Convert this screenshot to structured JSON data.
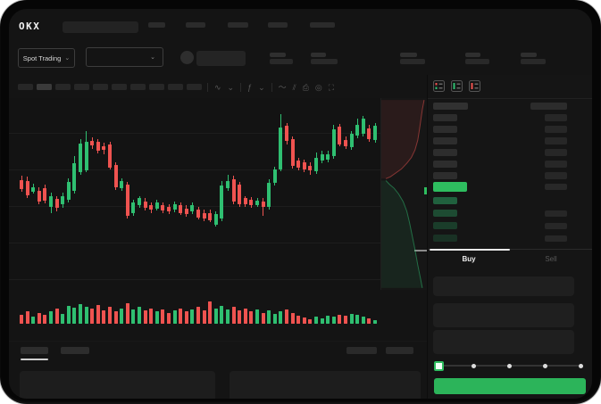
{
  "colors": {
    "up": "#2fbf71",
    "down": "#ef5350",
    "accent_green": "#2ebd5f",
    "buy_button": "#2cb45a",
    "background": "#141414"
  },
  "topnav": {
    "logo": "OKX",
    "search_placeholder": "",
    "items": [
      {
        "w": 19,
        "ml": 0
      },
      {
        "w": 22,
        "ml": 23
      },
      {
        "w": 23,
        "ml": 25
      },
      {
        "w": 22,
        "ml": 22
      },
      {
        "w": 28,
        "ml": 25
      }
    ]
  },
  "symbol_bar": {
    "market_selector": {
      "label": "Spot Trading",
      "chevron": "⌄"
    },
    "pair_selector": {
      "chevron": "⌄"
    },
    "stats": [
      {
        "label_w": 18,
        "value_w": 26,
        "ml": 0
      },
      {
        "label_w": 17,
        "value_w": 30,
        "ml": 20
      },
      {
        "label_w": 19,
        "value_w": 28,
        "ml": 70
      },
      {
        "label_w": 17,
        "value_w": 27,
        "ml": 45
      },
      {
        "label_w": 18,
        "value_w": 28,
        "ml": 35
      }
    ]
  },
  "chart_toolbar": {
    "timeframes": {
      "count": 10,
      "w": 17,
      "active_index": 1
    },
    "icons": [
      {
        "name": "separator"
      },
      {
        "name": "chart-style-icon",
        "glyph": "∿"
      },
      {
        "name": "chart-style-chevron-icon",
        "glyph": "⌄"
      },
      {
        "name": "separator"
      },
      {
        "name": "indicators-icon",
        "glyph": "ƒ"
      },
      {
        "name": "indicators-chevron-icon",
        "glyph": "⌄"
      },
      {
        "name": "separator"
      },
      {
        "name": "line-tool-icon",
        "glyph": "〜"
      },
      {
        "name": "compare-icon",
        "glyph": "⫽"
      },
      {
        "name": "screenshot-icon",
        "glyph": "⎙"
      },
      {
        "name": "chart-settings-icon",
        "glyph": "◎"
      },
      {
        "name": "fullscreen-icon",
        "glyph": "⛶"
      }
    ]
  },
  "chart_data": [
    {
      "type": "candlestick",
      "title": "",
      "xlabel": "time (axis unlabeled in UI)",
      "ylabel": "price (axis unlabeled in UI, relative scale 0-100)",
      "grid": true,
      "gridlines_pct": [
        18.1,
        37.2,
        56.3,
        75.3,
        94.4
      ],
      "up_color": "#2fbf71",
      "down_color": "#ef5350",
      "candles_ochl": [
        [
          57.5,
          52.8,
          60,
          51
        ],
        [
          57,
          49.5,
          59.5,
          48
        ],
        [
          51.4,
          53.8,
          55.7,
          50
        ],
        [
          51.9,
          45.7,
          53.8,
          44.3
        ],
        [
          53.3,
          46.2,
          55.2,
          44.8
        ],
        [
          42.9,
          48.6,
          50.5,
          39.5
        ],
        [
          47.1,
          42.4,
          49,
          40.5
        ],
        [
          44.3,
          49,
          50.9,
          42.4
        ],
        [
          46.7,
          56.7,
          58.6,
          45.2
        ],
        [
          51.6,
          66.7,
          70.6,
          50
        ],
        [
          61.9,
          77.8,
          80.1,
          60.5
        ],
        [
          62.7,
          78.6,
          84.6,
          61.9
        ],
        [
          78.9,
          76.7,
          80.9,
          74.8
        ],
        [
          78.6,
          73.8,
          80,
          72.4
        ],
        [
          76.2,
          74.1,
          78.1,
          71.9
        ],
        [
          77,
          64.6,
          78.6,
          63.3
        ],
        [
          65.9,
          53.5,
          67.1,
          52.4
        ],
        [
          53.2,
          57.1,
          58.6,
          51.9
        ],
        [
          55.1,
          38.1,
          56.7,
          36.7
        ],
        [
          39.7,
          45.2,
          46.7,
          38.1
        ],
        [
          43.7,
          47.6,
          49,
          42.4
        ],
        [
          46,
          42.4,
          47.6,
          40.9
        ],
        [
          43.7,
          41.3,
          45.2,
          39.7
        ],
        [
          42.1,
          45.2,
          46.7,
          40.9
        ],
        [
          44,
          40.8,
          45.6,
          39.4
        ],
        [
          42.9,
          40.5,
          44.3,
          39
        ],
        [
          41.3,
          44.4,
          45.9,
          40
        ],
        [
          43.7,
          39.7,
          45.2,
          38.4
        ],
        [
          42.1,
          38.9,
          43.7,
          37.5
        ],
        [
          40.5,
          43.7,
          45.2,
          39.2
        ],
        [
          41.3,
          37.3,
          42.9,
          36
        ],
        [
          39.7,
          36.5,
          41.3,
          35.2
        ],
        [
          39.7,
          35.7,
          41.3,
          34.4
        ],
        [
          33.3,
          38.9,
          40.5,
          32.1
        ],
        [
          36.5,
          54.8,
          57.1,
          35.2
        ],
        [
          53.2,
          57.1,
          60.5,
          51.9
        ],
        [
          58.2,
          46,
          59.8,
          44.6
        ],
        [
          55,
          44.4,
          56.7,
          42.9
        ],
        [
          47.6,
          44.4,
          49,
          42.9
        ],
        [
          46.8,
          44,
          48.3,
          42.5
        ],
        [
          44,
          46.5,
          48,
          42.7
        ],
        [
          46,
          42.9,
          47.6,
          38.1
        ],
        [
          42.9,
          56.3,
          57.9,
          41.3
        ],
        [
          56,
          63.5,
          65.1,
          54.6
        ],
        [
          63.5,
          86.5,
          93.8,
          62.2
        ],
        [
          87.3,
          78.9,
          89,
          77.3
        ],
        [
          80.2,
          65.6,
          81.7,
          64
        ],
        [
          68.3,
          64.6,
          70,
          63
        ],
        [
          67.1,
          63.5,
          68.7,
          61.9
        ],
        [
          65.6,
          62.7,
          67.1,
          60.3
        ],
        [
          62.2,
          69.8,
          72.9,
          60.8
        ],
        [
          68.3,
          71.9,
          73.5,
          66.8
        ],
        [
          68.7,
          71.9,
          73.5,
          67.1
        ],
        [
          70.9,
          85.2,
          88,
          69.4
        ],
        [
          86.8,
          77.3,
          88.4,
          75.9
        ],
        [
          79.7,
          76.2,
          81.3,
          74.7
        ],
        [
          75.4,
          83,
          84.6,
          73.9
        ],
        [
          82,
          87.8,
          91,
          80.5
        ],
        [
          83,
          91,
          92.9,
          81.6
        ],
        [
          86,
          80.2,
          87.6,
          78.7
        ],
        [
          79.7,
          87.3,
          88.9,
          78.2
        ]
      ],
      "volume": [
        40,
        55,
        30,
        45,
        38,
        52,
        64,
        42,
        78,
        70,
        85,
        75,
        66,
        80,
        58,
        72,
        52,
        66,
        88,
        62,
        72,
        58,
        66,
        52,
        62,
        48,
        58,
        66,
        52,
        62,
        72,
        58,
        95,
        66,
        76,
        62,
        72,
        58,
        66,
        52,
        62,
        48,
        56,
        44,
        52,
        62,
        48,
        34,
        26,
        20,
        30,
        24,
        36,
        30,
        40,
        34,
        44,
        38,
        30,
        22,
        16
      ]
    },
    {
      "type": "area",
      "subtype": "vertical-depth-chart",
      "asks_color": "#ef5350",
      "bids_color": "#2fbf71",
      "asks_curve": [
        [
          94,
          1
        ],
        [
          90,
          6
        ],
        [
          87,
          11
        ],
        [
          84,
          16
        ],
        [
          80,
          22
        ],
        [
          74,
          27
        ],
        [
          66,
          31
        ],
        [
          56,
          34
        ],
        [
          44,
          37
        ],
        [
          32,
          39
        ],
        [
          20,
          41
        ],
        [
          10,
          42
        ]
      ],
      "bids_curve": [
        [
          10,
          43
        ],
        [
          18,
          45
        ],
        [
          28,
          47
        ],
        [
          38,
          50
        ],
        [
          48,
          54
        ],
        [
          56,
          59
        ],
        [
          62,
          65
        ],
        [
          68,
          72
        ],
        [
          74,
          79
        ],
        [
          80,
          87
        ],
        [
          86,
          94
        ],
        [
          90,
          99
        ]
      ]
    }
  ],
  "orderbook": {
    "view_icons": [
      "orderbook-default-icon",
      "orderbook-buy-icon",
      "orderbook-sell-icon"
    ],
    "asks_rows": 6,
    "bids": [
      {
        "amount": false,
        "opacity": 0.45
      },
      {
        "amount": true,
        "opacity": 0.32
      },
      {
        "amount": true,
        "opacity": 0.24
      },
      {
        "amount": true,
        "opacity": 0.17
      }
    ],
    "last_price_highlight_color": "#2ebd5f"
  },
  "trade_panel": {
    "tabs": [
      {
        "label": "Buy",
        "active": true
      },
      {
        "label": "Sell",
        "active": false
      }
    ],
    "inputs": 3,
    "slider": {
      "stops": [
        0,
        25,
        50,
        75,
        100
      ],
      "active_stop": 0
    },
    "submit_color": "#2cb45a"
  },
  "bottom": {
    "tabs": [
      {
        "w": 31,
        "active": true
      },
      {
        "w": 32,
        "active": false
      }
    ],
    "right_blocks": [
      {
        "w": 34
      },
      {
        "w": 31
      }
    ]
  }
}
